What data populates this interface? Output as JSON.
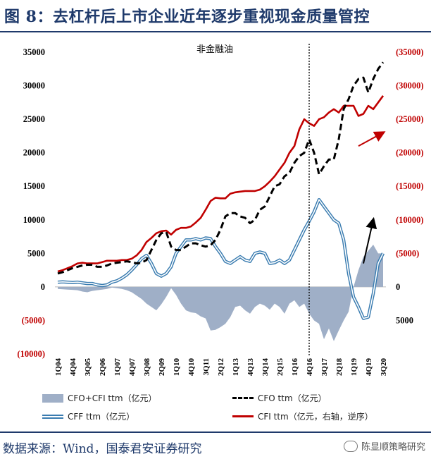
{
  "header": {
    "title": "图 8：去杠杆后上市企业近年逐步重视现金质量管控"
  },
  "source": {
    "text": "数据来源：Wind，国泰君安证券研究",
    "watermark": "陈显顺策略研究",
    "watermark_icon": "wechat-icon"
  },
  "colors": {
    "title": "#1f3a6b",
    "cfo_cfi_fill": "#9fafc7",
    "cfo": "#000000",
    "cff": "#3a7cb0",
    "cfi": "#c00000",
    "right_axis": "#c00000"
  },
  "chart_data": {
    "type": "area+line",
    "annotation": "非金融油",
    "divider_category": "4Q16",
    "left_axis": {
      "min": -10000,
      "max": 35000,
      "ticks": [
        35000,
        30000,
        25000,
        20000,
        15000,
        10000,
        5000,
        0,
        -5000,
        -10000
      ],
      "tick_labels": [
        "35000",
        "30000",
        "25000",
        "20000",
        "15000",
        "10000",
        "5000",
        "0",
        "(5000)",
        "(10000)"
      ]
    },
    "right_axis": {
      "label": "右轴，逆序",
      "min": -35000,
      "max": 10000,
      "inverted": true,
      "ticks": [
        -35000,
        -30000,
        -25000,
        -20000,
        -15000,
        -10000,
        -5000,
        0,
        5000
      ],
      "tick_labels": [
        "(35000)",
        "(30000)",
        "(25000)",
        "(20000)",
        "(15000)",
        "(10000)",
        "(5000)",
        "0",
        "5000"
      ]
    },
    "categories": [
      "1Q04",
      "2Q04",
      "3Q04",
      "4Q04",
      "1Q05",
      "2Q05",
      "3Q05",
      "4Q05",
      "1Q06",
      "2Q06",
      "3Q06",
      "4Q06",
      "1Q07",
      "2Q07",
      "3Q07",
      "4Q07",
      "1Q08",
      "2Q08",
      "3Q08",
      "4Q08",
      "1Q09",
      "2Q09",
      "3Q09",
      "4Q09",
      "1Q10",
      "2Q10",
      "3Q10",
      "4Q10",
      "1Q11",
      "2Q11",
      "3Q11",
      "4Q11",
      "1Q12",
      "2Q12",
      "3Q12",
      "4Q12",
      "1Q13",
      "2Q13",
      "3Q13",
      "4Q13",
      "1Q14",
      "2Q14",
      "3Q14",
      "4Q14",
      "1Q15",
      "2Q15",
      "3Q15",
      "4Q15",
      "1Q16",
      "2Q16",
      "3Q16",
      "4Q16",
      "1Q17",
      "2Q17",
      "3Q17",
      "4Q17",
      "1Q18",
      "2Q18",
      "3Q18",
      "4Q18",
      "1Q19",
      "2Q19",
      "3Q19",
      "4Q19",
      "1Q20",
      "2Q20",
      "3Q20"
    ],
    "tick_categories": [
      "1Q04",
      "4Q04",
      "3Q05",
      "2Q06",
      "1Q07",
      "4Q07",
      "3Q08",
      "2Q09",
      "1Q10",
      "4Q10",
      "3Q11",
      "2Q12",
      "1Q13",
      "4Q13",
      "3Q14",
      "2Q15",
      "1Q16",
      "4Q16",
      "3Q17",
      "2Q18",
      "1Q19",
      "4Q19",
      "3Q20"
    ],
    "series": [
      {
        "name": "CFO+CFI ttm（亿元）",
        "kind": "area",
        "axis": "left",
        "values": [
          -300,
          -350,
          -400,
          -450,
          -500,
          -700,
          -800,
          -600,
          -500,
          -400,
          -300,
          -100,
          -200,
          -300,
          -500,
          -800,
          -1300,
          -1800,
          -2500,
          -3000,
          -3500,
          -2600,
          -1500,
          -200,
          -1200,
          -2500,
          -3500,
          -3800,
          -3900,
          -4400,
          -4700,
          -6500,
          -6400,
          -6000,
          -5500,
          -4500,
          -3000,
          -2800,
          -3500,
          -4000,
          -3000,
          -2500,
          -2800,
          -3400,
          -2500,
          -3000,
          -4000,
          -2500,
          -2000,
          -3000,
          -2500,
          -4000,
          -5000,
          -5500,
          -7800,
          -6200,
          -8100,
          -6500,
          -5000,
          -3700,
          0,
          2500,
          4500,
          5400,
          6300,
          5000,
          5000
        ]
      },
      {
        "name": "CFO ttm（亿元）",
        "kind": "line-dashed",
        "axis": "left",
        "values": [
          2000,
          2200,
          2500,
          2800,
          3000,
          3200,
          3300,
          3300,
          3000,
          3000,
          3200,
          3500,
          3600,
          3700,
          3800,
          3700,
          3500,
          3600,
          4000,
          5500,
          7000,
          8000,
          8200,
          6000,
          5500,
          5500,
          6000,
          6500,
          6500,
          6200,
          6000,
          6200,
          7000,
          8500,
          10500,
          11000,
          11000,
          10500,
          10300,
          9500,
          10000,
          11500,
          12000,
          13500,
          15000,
          15300,
          16500,
          17000,
          18500,
          19500,
          20000,
          22000,
          20000,
          16800,
          18000,
          19000,
          19000,
          22000,
          26500,
          28000,
          30000,
          31000,
          31200,
          29000,
          31000,
          32500,
          33500
        ]
      },
      {
        "name": "CFF ttm（亿元）",
        "kind": "line-double",
        "axis": "left",
        "values": [
          700,
          750,
          700,
          650,
          700,
          600,
          500,
          500,
          300,
          200,
          300,
          700,
          900,
          1300,
          1800,
          2500,
          3300,
          4200,
          4700,
          3500,
          2000,
          1600,
          2000,
          3000,
          5000,
          6000,
          7000,
          7000,
          7200,
          7000,
          7300,
          7200,
          6000,
          5000,
          3800,
          3500,
          4000,
          4500,
          4000,
          3800,
          5000,
          5200,
          5000,
          3500,
          3600,
          4000,
          3500,
          4000,
          5500,
          7000,
          8500,
          9800,
          11200,
          13000,
          12000,
          11000,
          10000,
          9500,
          7000,
          2000,
          -1500,
          -3000,
          -4700,
          -4500,
          -1000,
          3500,
          5000
        ]
      },
      {
        "name": "CFI ttm（亿元，右轴，逆序）",
        "kind": "line",
        "axis": "right",
        "values": [
          -2300,
          -2500,
          -2800,
          -3100,
          -3500,
          -3600,
          -3500,
          -3500,
          -3500,
          -3700,
          -3900,
          -3900,
          -3900,
          -4000,
          -4000,
          -4200,
          -4700,
          -5500,
          -6700,
          -7300,
          -8000,
          -8300,
          -8400,
          -7800,
          -8500,
          -8800,
          -8800,
          -9000,
          -9600,
          -10300,
          -11500,
          -12800,
          -13300,
          -13200,
          -13200,
          -13900,
          -14100,
          -14200,
          -14300,
          -14300,
          -14300,
          -14500,
          -15000,
          -15700,
          -16500,
          -17500,
          -18500,
          -20000,
          -21000,
          -23500,
          -25000,
          -24400,
          -24000,
          -25000,
          -25300,
          -26000,
          -26500,
          -26000,
          -27000,
          -27000,
          -27000,
          -25500,
          -25800,
          -27000,
          -26500,
          -27500,
          -28500
        ]
      }
    ],
    "arrows": [
      {
        "name": "red-trend-arrow",
        "color": "#c00000",
        "from_category": "2Q19",
        "to_category": "3Q20",
        "from_value": 21000,
        "to_value": 23000
      },
      {
        "name": "black-trend-arrow",
        "color": "#000000",
        "from_category": "3Q19",
        "to_category": "1Q20",
        "from_value": 3500,
        "to_value": 10000
      }
    ]
  }
}
